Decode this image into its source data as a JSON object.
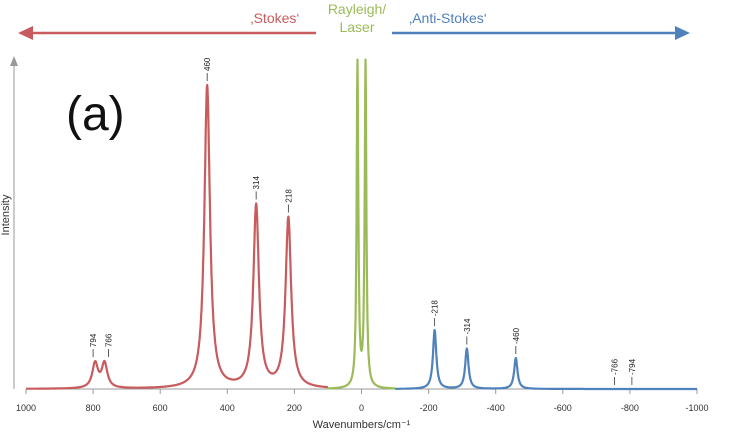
{
  "chart_data": {
    "type": "line",
    "panel_label": "(a)",
    "xlabel": "Wavenumbers/cm⁻¹",
    "ylabel": "Intensity",
    "xlim": [
      1000,
      -1000
    ],
    "x_ticks": [
      1000,
      800,
      600,
      400,
      200,
      0,
      -200,
      -400,
      -600,
      -800,
      -1000
    ],
    "x_tick_labels": [
      "1000",
      "800",
      "600",
      "400",
      "200",
      "0",
      "-200",
      "-400",
      "-600",
      "-800",
      "-1000"
    ],
    "ylim": [
      0,
      1.0
    ],
    "grid": false,
    "legend": "none",
    "regions": [
      {
        "label": "‚Stokes‘",
        "color": "#c85b5d"
      },
      {
        "label": "Rayleigh/",
        "label2": "Laser",
        "color": "#9bbb59"
      },
      {
        "label": "‚Anti-Stokes‘",
        "color": "#4f81bd"
      }
    ],
    "series": [
      {
        "name": "Stokes",
        "color": "#c85b5d",
        "x_range": [
          1000,
          100
        ],
        "peaks": [
          {
            "x": 794,
            "height": 0.08,
            "label": "794"
          },
          {
            "x": 766,
            "height": 0.08,
            "label": "766"
          },
          {
            "x": 460,
            "height": 0.98,
            "label": "460"
          },
          {
            "x": 314,
            "height": 0.59,
            "label": "314"
          },
          {
            "x": 218,
            "height": 0.55,
            "label": "218"
          }
        ]
      },
      {
        "name": "Rayleigh/Laser",
        "color": "#9bbb59",
        "x_range": [
          100,
          -100
        ],
        "peaks": [
          {
            "x": 12,
            "height": 1.05
          },
          {
            "x": -12,
            "height": 1.05
          }
        ]
      },
      {
        "name": "Anti-Stokes",
        "color": "#4f81bd",
        "x_range": [
          -100,
          -1000
        ],
        "peaks": [
          {
            "x": -218,
            "height": 0.19,
            "label": "-218"
          },
          {
            "x": -314,
            "height": 0.13,
            "label": "-314"
          },
          {
            "x": -460,
            "height": 0.1,
            "label": "-460"
          },
          {
            "x": -766,
            "height": 0.0,
            "label": "-766"
          },
          {
            "x": -794,
            "height": 0.0,
            "label": "-794"
          }
        ]
      }
    ]
  }
}
